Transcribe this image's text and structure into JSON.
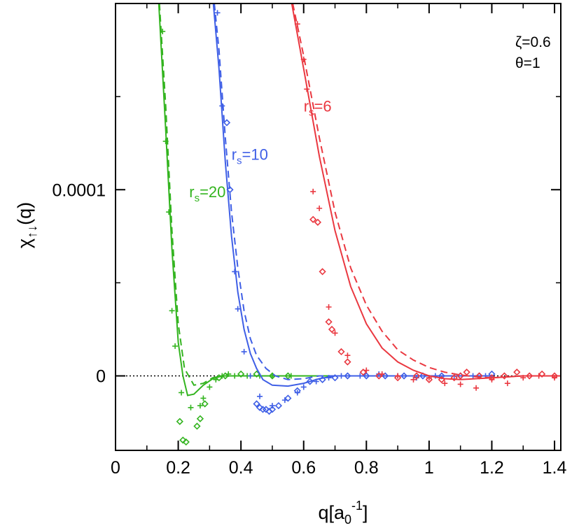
{
  "chart_data": {
    "type": "line",
    "xlabel_main": "q[a",
    "xlabel_sub": "0",
    "xlabel_sup": "-1",
    "xlabel_close": "]",
    "ylabel_main": "χ",
    "ylabel_sub": "↑↓",
    "ylabel_tail": "(q)",
    "xlim": [
      0,
      1.42
    ],
    "ylim": [
      -4e-05,
      0.0002
    ],
    "x_ticks": [
      {
        "value": 0,
        "label": "0"
      },
      {
        "value": 0.2,
        "label": "0.2"
      },
      {
        "value": 0.4,
        "label": "0.4"
      },
      {
        "value": 0.6,
        "label": "0.6"
      },
      {
        "value": 0.8,
        "label": "0.8"
      },
      {
        "value": 1.0,
        "label": "1"
      },
      {
        "value": 1.2,
        "label": "1.2"
      },
      {
        "value": 1.4,
        "label": "1.4"
      }
    ],
    "y_ticks": [
      {
        "value": 0,
        "label": "0"
      },
      {
        "value": 0.0001,
        "label": "0.0001"
      }
    ],
    "zero_line": true,
    "params": {
      "line1": "ζ=0.6",
      "line2": "θ=1"
    },
    "series": [
      {
        "name": "rs=20",
        "label_main": "r",
        "label_sub": "s",
        "label_tail": "=20",
        "label_pos": {
          "x": 0.235,
          "y": 9.6e-05
        },
        "color": "#33b41f",
        "solid": [
          [
            0.138,
            0.0002
          ],
          [
            0.16,
            0.000132
          ],
          [
            0.18,
            6.8e-05
          ],
          [
            0.2,
            1.8e-05
          ],
          [
            0.215,
            0.0
          ],
          [
            0.23,
            -1.05e-05
          ],
          [
            0.25,
            -9.8e-06
          ],
          [
            0.28,
            -5e-06
          ],
          [
            0.31,
            -1.5e-06
          ],
          [
            0.34,
            0.0
          ],
          [
            0.4,
            0.0
          ],
          [
            0.5,
            0.0
          ],
          [
            0.7,
            0.0
          ]
        ],
        "dashed": [
          [
            0.14,
            0.0002
          ],
          [
            0.16,
            0.000145
          ],
          [
            0.18,
            7.8e-05
          ],
          [
            0.2,
            2.8e-05
          ],
          [
            0.22,
            4e-06
          ],
          [
            0.25,
            -5e-06
          ],
          [
            0.28,
            -4e-06
          ],
          [
            0.31,
            -1e-06
          ],
          [
            0.34,
            0.0
          ],
          [
            0.4,
            0.0
          ],
          [
            0.6,
            0.0
          ]
        ],
        "diamonds": [
          [
            0.205,
            -2.45e-05
          ],
          [
            0.215,
            -3.45e-05
          ],
          [
            0.225,
            -3.55e-05
          ],
          [
            0.26,
            -2.7e-05
          ],
          [
            0.27,
            -2.3e-05
          ],
          [
            0.285,
            -1.5e-05
          ],
          [
            0.33,
            -1e-06
          ],
          [
            0.35,
            0.0
          ],
          [
            0.4,
            1e-06
          ],
          [
            0.45,
            1e-06
          ],
          [
            0.5,
            0.0
          ],
          [
            0.55,
            0.0
          ]
        ],
        "crosses": [
          [
            0.15,
            0.000185
          ],
          [
            0.16,
            0.000126
          ],
          [
            0.17,
            8.8e-05
          ],
          [
            0.18,
            3.5e-05
          ],
          [
            0.19,
            1.6e-05
          ],
          [
            0.21,
            -9e-06
          ],
          [
            0.24,
            -1.7e-05
          ],
          [
            0.27,
            -1.6e-05
          ],
          [
            0.28,
            -1.2e-05
          ],
          [
            0.3,
            -6e-06
          ],
          [
            0.32,
            -2e-06
          ],
          [
            0.34,
            0.0
          ],
          [
            0.36,
            1e-06
          ],
          [
            0.38,
            0.0
          ],
          [
            0.42,
            0.0
          ],
          [
            0.46,
            0.0
          ],
          [
            0.5,
            0.0
          ],
          [
            0.56,
            0.0
          ]
        ]
      },
      {
        "name": "rs=10",
        "label_main": "r",
        "label_sub": "s",
        "label_tail": "=10",
        "label_pos": {
          "x": 0.37,
          "y": 0.000116
        },
        "color": "#3f5fe6",
        "solid": [
          [
            0.312,
            0.0002
          ],
          [
            0.33,
            0.000165
          ],
          [
            0.35,
            0.000115
          ],
          [
            0.37,
            7.5e-05
          ],
          [
            0.39,
            4.5e-05
          ],
          [
            0.41,
            2.5e-05
          ],
          [
            0.43,
            1.2e-05
          ],
          [
            0.45,
            4e-06
          ],
          [
            0.47,
            -2e-06
          ],
          [
            0.5,
            -5e-06
          ],
          [
            0.55,
            -5.5e-06
          ],
          [
            0.6,
            -4e-06
          ],
          [
            0.65,
            -1.5e-06
          ],
          [
            0.7,
            0.0
          ],
          [
            0.9,
            0.0
          ],
          [
            1.2,
            0.0
          ]
        ],
        "dashed": [
          [
            0.315,
            0.0002
          ],
          [
            0.33,
            0.000175
          ],
          [
            0.35,
            0.000128
          ],
          [
            0.37,
            8.8e-05
          ],
          [
            0.39,
            5.8e-05
          ],
          [
            0.41,
            3.5e-05
          ],
          [
            0.43,
            2e-05
          ],
          [
            0.45,
            1.1e-05
          ],
          [
            0.48,
            4e-06
          ],
          [
            0.51,
            0.0
          ],
          [
            0.55,
            -2e-06
          ],
          [
            0.6,
            -1.5e-06
          ],
          [
            0.65,
            0.0
          ],
          [
            0.8,
            0.0
          ],
          [
            1.0,
            0.0
          ]
        ],
        "diamonds": [
          [
            0.355,
            0.000136
          ],
          [
            0.365,
            0.0001
          ],
          [
            0.45,
            -1.5e-05
          ],
          [
            0.46,
            -1.7e-05
          ],
          [
            0.47,
            -1.8e-05
          ],
          [
            0.48,
            -1.8e-05
          ],
          [
            0.49,
            -1.9e-05
          ],
          [
            0.5,
            -1.8e-05
          ],
          [
            0.52,
            -1.6e-05
          ],
          [
            0.55,
            -1.2e-05
          ],
          [
            0.58,
            -8e-06
          ],
          [
            0.62,
            -3e-06
          ],
          [
            0.66,
            -2e-06
          ],
          [
            0.7,
            -1e-06
          ],
          [
            0.74,
            0.0
          ],
          [
            0.8,
            0.0
          ],
          [
            0.86,
            0.0
          ],
          [
            0.92,
            0.0
          ],
          [
            0.98,
            0.0
          ],
          [
            1.04,
            0.0
          ],
          [
            1.1,
            0.0
          ],
          [
            1.16,
            0.0
          ],
          [
            1.2,
            1e-06
          ]
        ],
        "crosses": [
          [
            0.325,
            0.000195
          ],
          [
            0.34,
            0.000145
          ],
          [
            0.38,
            5.6e-05
          ],
          [
            0.39,
            3.6e-05
          ],
          [
            0.41,
            1.3e-05
          ],
          [
            0.43,
            0.0
          ],
          [
            0.46,
            -1.1e-05
          ],
          [
            0.5,
            -1.6e-05
          ],
          [
            0.54,
            -1.3e-05
          ],
          [
            0.58,
            -9e-06
          ],
          [
            0.6,
            -6e-06
          ],
          [
            0.64,
            -3e-06
          ],
          [
            0.68,
            -1e-06
          ],
          [
            0.72,
            0.0
          ],
          [
            0.78,
            0.0
          ],
          [
            0.84,
            1e-06
          ],
          [
            0.9,
            0.0
          ],
          [
            0.96,
            -1e-06
          ],
          [
            1.02,
            0.0
          ],
          [
            1.08,
            0.0
          ],
          [
            1.14,
            0.0
          ],
          [
            1.18,
            0.0
          ]
        ]
      },
      {
        "name": "rs=6",
        "label_main": "r",
        "label_sub": "s",
        "label_tail": "=6",
        "label_pos": {
          "x": 0.6,
          "y": 0.000142
        },
        "color": "#ea3840",
        "solid": [
          [
            0.562,
            0.0002
          ],
          [
            0.6,
            0.000165
          ],
          [
            0.65,
            0.000118
          ],
          [
            0.7,
            7.8e-05
          ],
          [
            0.75,
            4.8e-05
          ],
          [
            0.8,
            2.8e-05
          ],
          [
            0.85,
            1.5e-05
          ],
          [
            0.9,
            7.5e-06
          ],
          [
            0.95,
            3e-06
          ],
          [
            1.0,
            0.0
          ],
          [
            1.05,
            -1.5e-06
          ],
          [
            1.1,
            -2e-06
          ],
          [
            1.15,
            -1.5e-06
          ],
          [
            1.2,
            -1e-06
          ],
          [
            1.3,
            0.0
          ],
          [
            1.42,
            0.0
          ]
        ],
        "dashed": [
          [
            0.565,
            0.0002
          ],
          [
            0.6,
            0.000172
          ],
          [
            0.65,
            0.000128
          ],
          [
            0.7,
            8.8e-05
          ],
          [
            0.75,
            5.8e-05
          ],
          [
            0.8,
            3.8e-05
          ],
          [
            0.85,
            2.4e-05
          ],
          [
            0.9,
            1.4e-05
          ],
          [
            0.95,
            8.5e-06
          ],
          [
            1.0,
            4.5e-06
          ],
          [
            1.05,
            2e-06
          ],
          [
            1.1,
            5e-07
          ],
          [
            1.15,
            -5e-07
          ],
          [
            1.2,
            -1e-06
          ],
          [
            1.3,
            0.0
          ],
          [
            1.42,
            0.0
          ]
        ],
        "diamonds": [
          [
            0.63,
            8.4e-05
          ],
          [
            0.645,
            8.25e-05
          ],
          [
            0.66,
            5.6e-05
          ],
          [
            0.68,
            2.9e-05
          ],
          [
            0.69,
            2.5e-05
          ],
          [
            0.72,
            1.3e-05
          ],
          [
            0.74,
            7.5e-06
          ],
          [
            0.79,
            2e-06
          ],
          [
            0.84,
            0.0
          ],
          [
            0.9,
            -1e-06
          ],
          [
            0.96,
            0.0
          ],
          [
            1.0,
            -2e-06
          ],
          [
            1.04,
            -2e-06
          ],
          [
            1.08,
            -1e-06
          ],
          [
            1.1,
            0.0
          ],
          [
            1.12,
            2e-06
          ],
          [
            1.16,
            0.0
          ],
          [
            1.2,
            -1e-06
          ],
          [
            1.24,
            0.0
          ],
          [
            1.28,
            2e-06
          ],
          [
            1.32,
            0.0
          ],
          [
            1.36,
            1e-06
          ],
          [
            1.4,
            0.0
          ]
        ],
        "crosses": [
          [
            0.58,
            0.000189
          ],
          [
            0.6,
            0.00017
          ],
          [
            0.61,
            0.000154
          ],
          [
            0.63,
            9.9e-05
          ],
          [
            0.65,
            9e-05
          ],
          [
            0.68,
            3.7e-05
          ],
          [
            0.7,
            2.3e-05
          ],
          [
            0.74,
            1.1e-05
          ],
          [
            0.8,
            3e-06
          ],
          [
            0.85,
            1e-06
          ],
          [
            0.9,
            0.0
          ],
          [
            0.95,
            -2e-06
          ],
          [
            1.0,
            -1e-06
          ],
          [
            1.05,
            -4e-06
          ],
          [
            1.1,
            -4.5e-06
          ],
          [
            1.15,
            -6.5e-06
          ],
          [
            1.2,
            -2e-06
          ],
          [
            1.25,
            -4e-06
          ],
          [
            1.3,
            -1e-06
          ],
          [
            1.35,
            0.0
          ],
          [
            1.4,
            -1e-06
          ]
        ]
      }
    ]
  }
}
